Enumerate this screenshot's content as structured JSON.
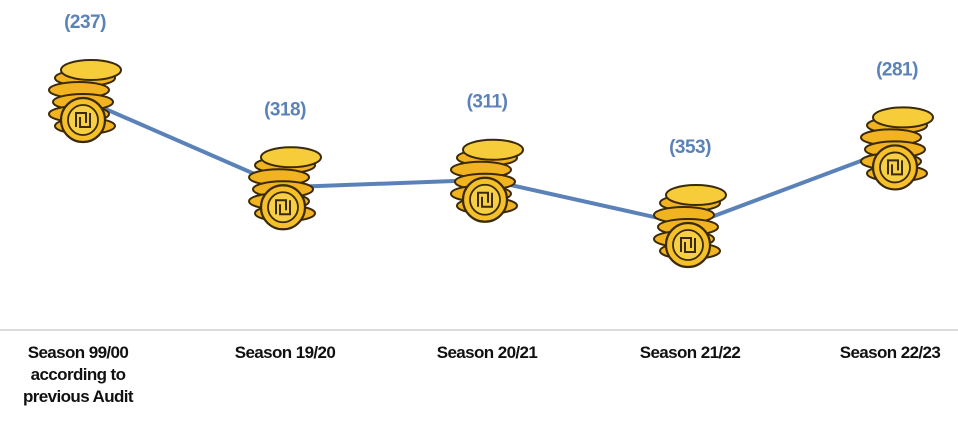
{
  "chart_data": {
    "type": "line",
    "categories": [
      "Season 99/00 according to previous Audit",
      "Season 19/20",
      "Season 20/21",
      "Season 21/22",
      "Season 22/23"
    ],
    "values": [
      -237,
      -318,
      -311,
      -353,
      -281
    ],
    "value_labels": [
      "(237)",
      "(318)",
      "(311)",
      "(353)",
      "(281)"
    ],
    "color": "#5b82b8"
  }
}
